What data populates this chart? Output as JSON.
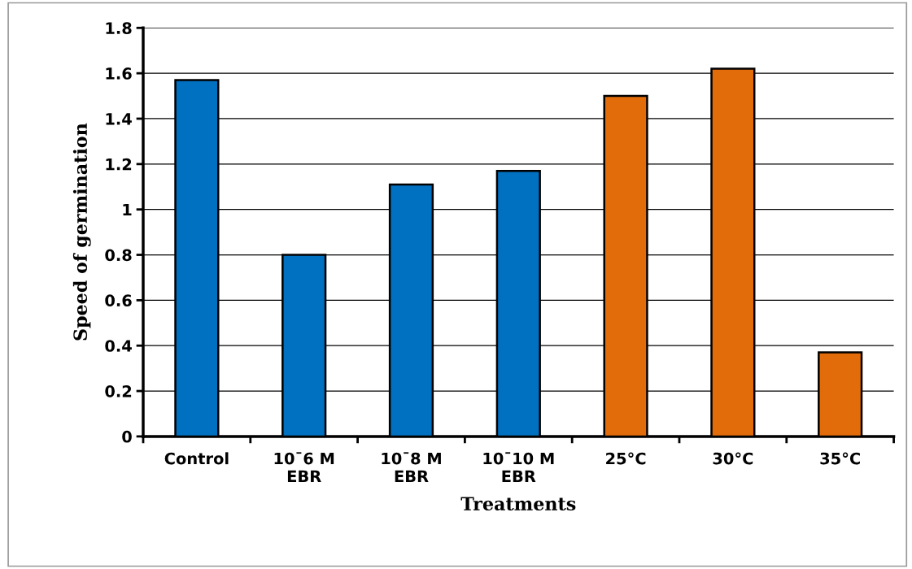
{
  "chart_data": {
    "type": "bar",
    "xlabel": "Treatments",
    "ylabel": "Speed of germination",
    "categories": [
      "Control",
      "10¯6 M\nEBR",
      "10¯8 M\nEBR",
      "10¯10 M\nEBR",
      "25°C",
      "30°C",
      "35°C"
    ],
    "values": [
      1.57,
      0.8,
      1.11,
      1.17,
      1.5,
      1.62,
      0.37
    ],
    "colors": [
      "#0070c0",
      "#0070c0",
      "#0070c0",
      "#0070c0",
      "#e36c0a",
      "#e36c0a",
      "#e36c0a"
    ],
    "ylim": [
      0,
      1.8
    ],
    "yticks": [
      0,
      {
        "value": 0.2,
        "label": "0.2"
      },
      {
        "value": 0.4,
        "label": "0.4"
      },
      {
        "value": 0.6,
        "label": "0.6"
      },
      {
        "value": 0.8,
        "label": "0.8"
      },
      1,
      {
        "value": 1.2,
        "label": "1.2"
      },
      {
        "value": 1.4,
        "label": "1.4"
      },
      {
        "value": 1.6,
        "label": "1.6"
      },
      {
        "value": 1.8,
        "label": "1.8"
      }
    ],
    "grid": "y",
    "legend": false
  }
}
